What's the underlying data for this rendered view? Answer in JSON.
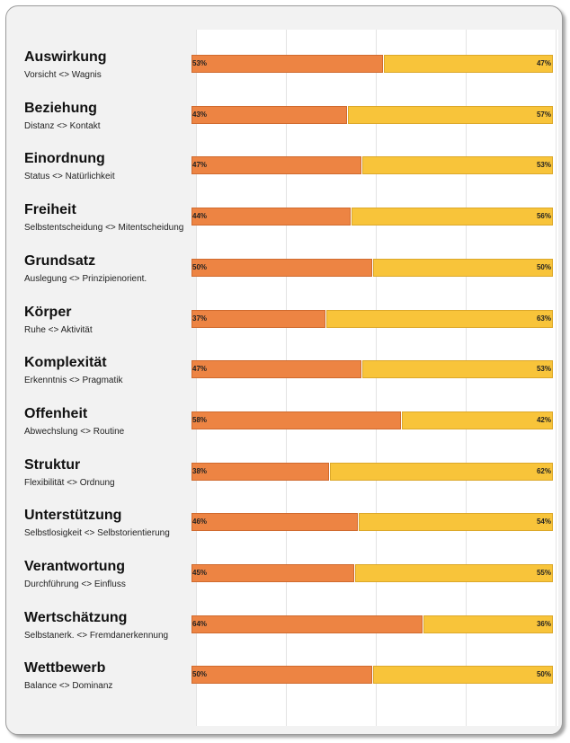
{
  "chart_data": {
    "type": "bar",
    "orientation": "horizontal",
    "stacked": true,
    "x_range": [
      0,
      100
    ],
    "grid": true,
    "colors": {
      "left": "#ed8443",
      "right": "#f8c43a"
    },
    "categories": [
      "Auswirkung",
      "Beziehung",
      "Einordnung",
      "Freiheit",
      "Grundsatz",
      "Körper",
      "Komplexität",
      "Offenheit",
      "Struktur",
      "Unterstützung",
      "Verantwortung",
      "Wertschätzung",
      "Wettbewerb"
    ],
    "subtitles": [
      "Vorsicht <> Wagnis",
      "Distanz <> Kontakt",
      "Status <> Natürlichkeit",
      "Selbstentscheidung <> Mitentscheidung",
      "Auslegung <> Prinzipienorient.",
      "Ruhe <> Aktivität",
      "Erkenntnis <> Pragmatik",
      "Abwechslung <> Routine",
      "Flexibilität <> Ordnung",
      "Selbstlosigkeit <> Selbstorientierung",
      "Durchführung <> Einfluss",
      "Selbstanerk. <> Fremdanerkennung",
      "Balance <> Dominanz"
    ],
    "series": [
      {
        "values": [
          53,
          43,
          47,
          44,
          50,
          37,
          47,
          58,
          38,
          46,
          45,
          64,
          50
        ]
      },
      {
        "values": [
          47,
          57,
          53,
          56,
          50,
          63,
          53,
          42,
          62,
          54,
          55,
          36,
          50
        ]
      }
    ],
    "value_suffix": "%"
  }
}
